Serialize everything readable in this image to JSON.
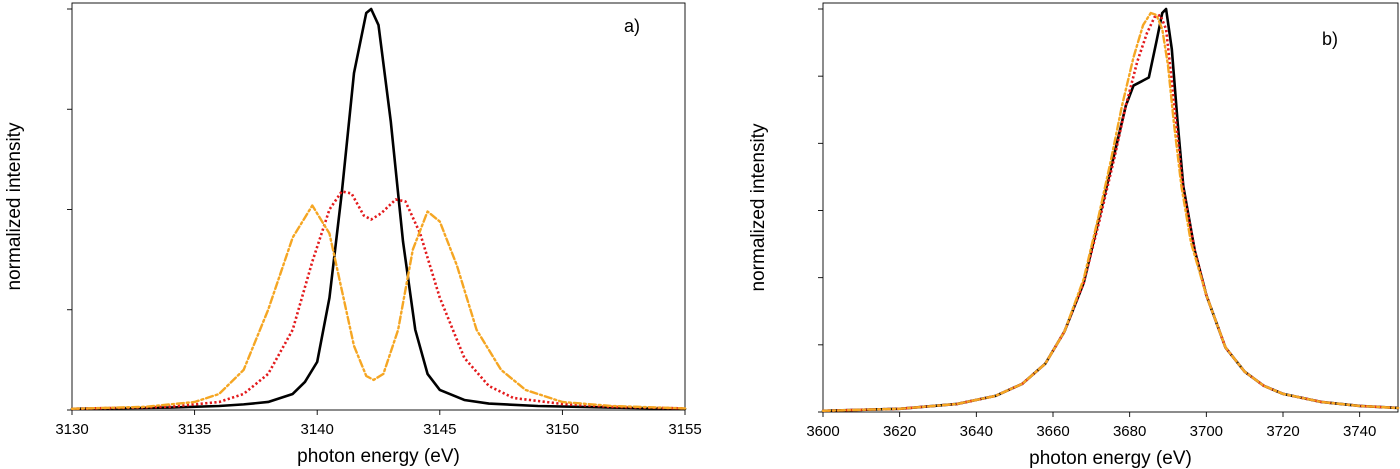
{
  "chart_data": [
    {
      "type": "line",
      "panel_label": "a)",
      "xlabel": "photon energy (eV)",
      "ylabel": "normalized intensity",
      "xlim": [
        3130,
        3155
      ],
      "ylim": [
        0,
        1.0
      ],
      "xticks": [
        3130,
        3135,
        3140,
        3145,
        3150,
        3155
      ],
      "yticks_labeled": false,
      "grid": false,
      "series": [
        {
          "color": "#000000",
          "style": "solid",
          "points": [
            [
              3130,
              0.003
            ],
            [
              3134,
              0.006
            ],
            [
              3136,
              0.01
            ],
            [
              3137,
              0.014
            ],
            [
              3138,
              0.02
            ],
            [
              3139,
              0.04
            ],
            [
              3139.5,
              0.07
            ],
            [
              3140,
              0.12
            ],
            [
              3140.5,
              0.28
            ],
            [
              3141,
              0.54
            ],
            [
              3141.5,
              0.84
            ],
            [
              3142,
              0.99
            ],
            [
              3142.2,
              1.0
            ],
            [
              3142.5,
              0.96
            ],
            [
              3143,
              0.72
            ],
            [
              3143.5,
              0.42
            ],
            [
              3144,
              0.2
            ],
            [
              3144.5,
              0.09
            ],
            [
              3145,
              0.05
            ],
            [
              3146,
              0.025
            ],
            [
              3147,
              0.016
            ],
            [
              3149,
              0.01
            ],
            [
              3152,
              0.006
            ],
            [
              3155,
              0.003
            ]
          ]
        },
        {
          "color": "#e31a1c",
          "style": "dotted",
          "points": [
            [
              3130,
              0.003
            ],
            [
              3134,
              0.008
            ],
            [
              3136,
              0.02
            ],
            [
              3137,
              0.04
            ],
            [
              3138,
              0.09
            ],
            [
              3139,
              0.2
            ],
            [
              3139.8,
              0.37
            ],
            [
              3140.5,
              0.5
            ],
            [
              3141,
              0.545
            ],
            [
              3141.4,
              0.54
            ],
            [
              3141.9,
              0.485
            ],
            [
              3142.2,
              0.475
            ],
            [
              3142.6,
              0.49
            ],
            [
              3143.2,
              0.525
            ],
            [
              3143.6,
              0.52
            ],
            [
              3144.2,
              0.44
            ],
            [
              3145,
              0.28
            ],
            [
              3146,
              0.13
            ],
            [
              3147,
              0.06
            ],
            [
              3148,
              0.03
            ],
            [
              3150,
              0.015
            ],
            [
              3152,
              0.008
            ],
            [
              3155,
              0.004
            ]
          ]
        },
        {
          "color": "#f5a623",
          "style": "dashdot",
          "points": [
            [
              3130,
              0.003
            ],
            [
              3133,
              0.008
            ],
            [
              3135,
              0.02
            ],
            [
              3136,
              0.04
            ],
            [
              3137,
              0.1
            ],
            [
              3138,
              0.25
            ],
            [
              3139,
              0.43
            ],
            [
              3139.8,
              0.51
            ],
            [
              3140.5,
              0.44
            ],
            [
              3141,
              0.3
            ],
            [
              3141.5,
              0.16
            ],
            [
              3142,
              0.085
            ],
            [
              3142.3,
              0.075
            ],
            [
              3142.7,
              0.09
            ],
            [
              3143.3,
              0.2
            ],
            [
              3143.9,
              0.4
            ],
            [
              3144.5,
              0.495
            ],
            [
              3145,
              0.47
            ],
            [
              3145.7,
              0.36
            ],
            [
              3146.5,
              0.2
            ],
            [
              3147.5,
              0.1
            ],
            [
              3148.5,
              0.05
            ],
            [
              3150,
              0.02
            ],
            [
              3152,
              0.01
            ],
            [
              3155,
              0.004
            ]
          ]
        }
      ]
    },
    {
      "type": "line",
      "panel_label": "b)",
      "xlabel": "photon energy (eV)",
      "ylabel": "normalized intensity",
      "xlim": [
        3600,
        3750
      ],
      "ylim": [
        0,
        1.0
      ],
      "xticks": [
        3600,
        3620,
        3640,
        3660,
        3680,
        3700,
        3720,
        3740
      ],
      "yticks_labeled": false,
      "grid": false,
      "series": [
        {
          "color": "#000000",
          "style": "solid",
          "points": [
            [
              3600,
              0.003
            ],
            [
              3620,
              0.008
            ],
            [
              3635,
              0.02
            ],
            [
              3645,
              0.04
            ],
            [
              3652,
              0.07
            ],
            [
              3658,
              0.12
            ],
            [
              3663,
              0.2
            ],
            [
              3668,
              0.32
            ],
            [
              3672,
              0.48
            ],
            [
              3676,
              0.64
            ],
            [
              3679,
              0.76
            ],
            [
              3681,
              0.81
            ],
            [
              3683,
              0.82
            ],
            [
              3685,
              0.83
            ],
            [
              3687,
              0.92
            ],
            [
              3688.5,
              0.99
            ],
            [
              3689.5,
              1.0
            ],
            [
              3691,
              0.9
            ],
            [
              3692.5,
              0.72
            ],
            [
              3694,
              0.56
            ],
            [
              3697,
              0.4
            ],
            [
              3700,
              0.29
            ],
            [
              3705,
              0.16
            ],
            [
              3710,
              0.1
            ],
            [
              3715,
              0.065
            ],
            [
              3720,
              0.045
            ],
            [
              3730,
              0.025
            ],
            [
              3740,
              0.015
            ],
            [
              3750,
              0.01
            ]
          ]
        },
        {
          "color": "#e31a1c",
          "style": "dotted",
          "points": [
            [
              3600,
              0.003
            ],
            [
              3620,
              0.008
            ],
            [
              3635,
              0.02
            ],
            [
              3645,
              0.04
            ],
            [
              3652,
              0.07
            ],
            [
              3658,
              0.12
            ],
            [
              3663,
              0.2
            ],
            [
              3668,
              0.32
            ],
            [
              3672,
              0.47
            ],
            [
              3676,
              0.63
            ],
            [
              3679,
              0.76
            ],
            [
              3682,
              0.87
            ],
            [
              3684.5,
              0.94
            ],
            [
              3686.5,
              0.98
            ],
            [
              3688,
              0.985
            ],
            [
              3689.5,
              0.95
            ],
            [
              3691,
              0.82
            ],
            [
              3692.5,
              0.68
            ],
            [
              3694,
              0.55
            ],
            [
              3697,
              0.4
            ],
            [
              3700,
              0.29
            ],
            [
              3705,
              0.16
            ],
            [
              3710,
              0.1
            ],
            [
              3715,
              0.065
            ],
            [
              3720,
              0.045
            ],
            [
              3730,
              0.025
            ],
            [
              3740,
              0.015
            ],
            [
              3750,
              0.01
            ]
          ]
        },
        {
          "color": "#f5a623",
          "style": "dashdot",
          "points": [
            [
              3600,
              0.003
            ],
            [
              3620,
              0.008
            ],
            [
              3635,
              0.02
            ],
            [
              3645,
              0.04
            ],
            [
              3652,
              0.07
            ],
            [
              3658,
              0.12
            ],
            [
              3663,
              0.2
            ],
            [
              3668,
              0.33
            ],
            [
              3672,
              0.49
            ],
            [
              3675,
              0.62
            ],
            [
              3678,
              0.76
            ],
            [
              3681,
              0.88
            ],
            [
              3683.5,
              0.96
            ],
            [
              3685.5,
              0.99
            ],
            [
              3687,
              0.985
            ],
            [
              3688.5,
              0.95
            ],
            [
              3690,
              0.86
            ],
            [
              3691.5,
              0.72
            ],
            [
              3693.5,
              0.56
            ],
            [
              3696,
              0.42
            ],
            [
              3700,
              0.29
            ],
            [
              3705,
              0.16
            ],
            [
              3710,
              0.1
            ],
            [
              3715,
              0.065
            ],
            [
              3720,
              0.045
            ],
            [
              3730,
              0.025
            ],
            [
              3740,
              0.015
            ],
            [
              3750,
              0.01
            ]
          ]
        }
      ]
    }
  ]
}
